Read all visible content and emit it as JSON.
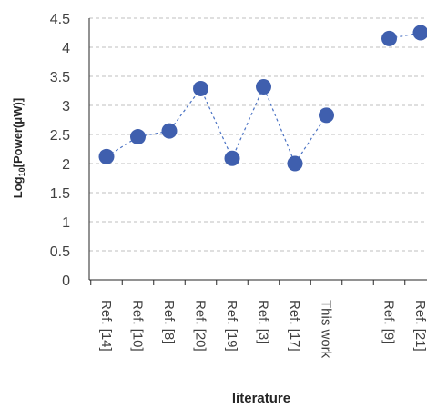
{
  "chart_data": {
    "type": "scatter",
    "title": "",
    "xlabel": "literature",
    "ylabel_main": "Log",
    "ylabel_sub": "10",
    "ylabel_rest": "[Power(μW)]",
    "ylim": [
      0,
      4.5
    ],
    "yticks": [
      "0",
      "0.5",
      "1",
      "1.5",
      "2",
      "2.5",
      "3",
      "3.5",
      "4",
      "4.5"
    ],
    "grid": true,
    "legend": "none",
    "categories": [
      "Ref. [14]",
      "Ref. [10]",
      "Ref. [8]",
      "Ref. [20]",
      "Ref. [19]",
      "Ref. [3]",
      "Ref. [17]",
      "This work",
      "",
      "Ref. [9]",
      "Ref. [21]"
    ],
    "series": [
      {
        "values": [
          2.12,
          2.46,
          2.56,
          3.29,
          2.09,
          3.32,
          2.0,
          2.83,
          null,
          4.15,
          4.25
        ]
      }
    ],
    "colors": {
      "marker": "#3f5fae",
      "line": "#4a72c4",
      "grid": "#bfbfbf",
      "axis": "#262626"
    }
  }
}
